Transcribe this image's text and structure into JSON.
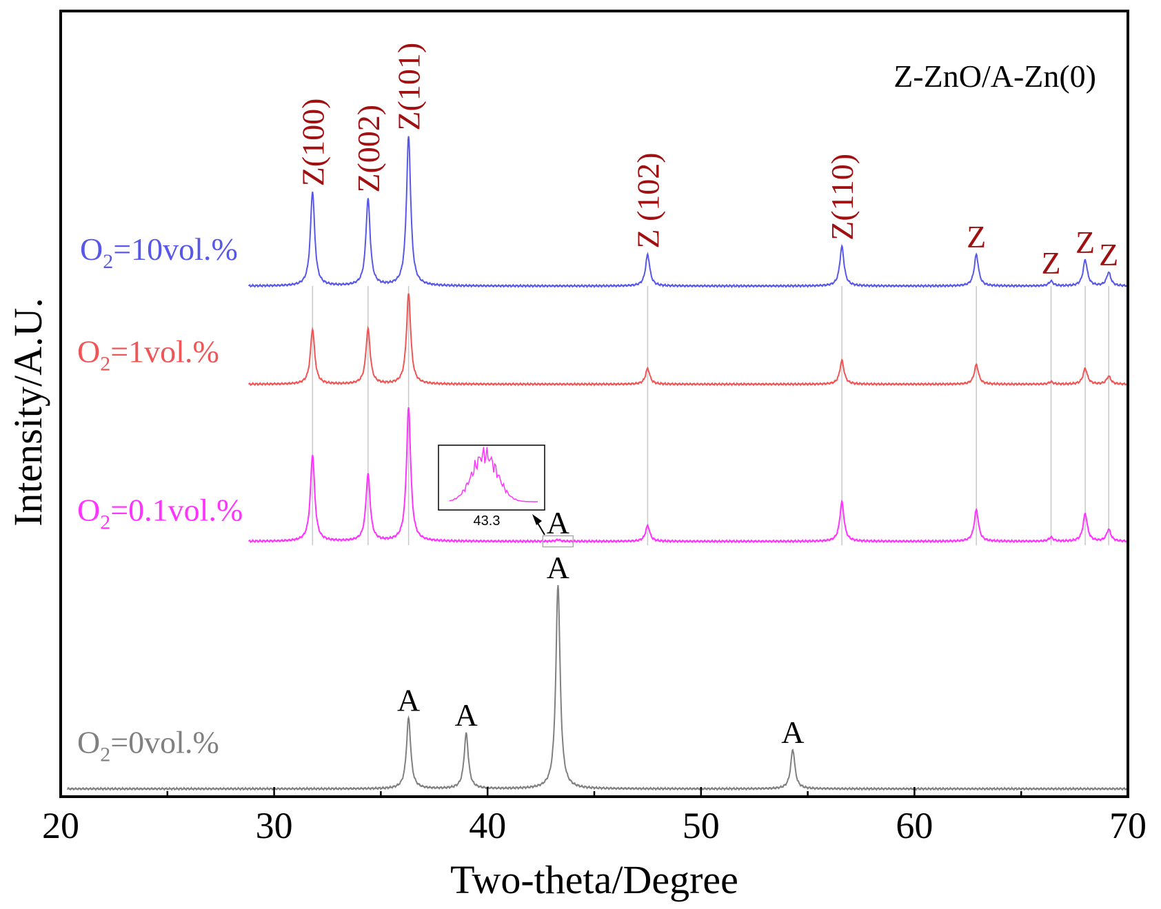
{
  "chart_data": {
    "type": "line",
    "title": "",
    "annotation": "Z-ZnO/A-Zn(0)",
    "xlabel": "Two-theta/Degree",
    "ylabel": "Intensity/A.U.",
    "xlim": [
      20,
      70
    ],
    "ylim": [
      0,
      100
    ],
    "x_ticks": [
      20,
      30,
      40,
      50,
      60,
      70
    ],
    "x_tick_labels": [
      "20",
      "30",
      "40",
      "50",
      "60",
      "70"
    ],
    "grid": false,
    "reference_lines": [
      31.8,
      34.4,
      36.3,
      47.5,
      56.6,
      62.9,
      66.4,
      68.0,
      69.1
    ],
    "series": [
      {
        "name": "O2=10vol.%",
        "label_main": "O",
        "label_sub": "2",
        "label_rest": "=10vol.%",
        "color": "#5858e8",
        "baseline": 65,
        "peaks": [
          [
            31.8,
            12
          ],
          [
            34.4,
            11
          ],
          [
            36.3,
            19
          ],
          [
            47.5,
            4
          ],
          [
            56.6,
            5
          ],
          [
            62.9,
            4
          ],
          [
            66.4,
            0.6
          ],
          [
            68.0,
            3.3
          ],
          [
            69.1,
            1.7
          ]
        ]
      },
      {
        "name": "O2=1vol.%",
        "label_main": "O",
        "label_sub": "2",
        "label_rest": "=1vol.%",
        "color": "#f05555",
        "baseline": 52.5,
        "peaks": [
          [
            31.8,
            7
          ],
          [
            34.4,
            7
          ],
          [
            36.3,
            11.5
          ],
          [
            47.5,
            2
          ],
          [
            56.6,
            3
          ],
          [
            62.9,
            2.5
          ],
          [
            66.4,
            0.3
          ],
          [
            68.0,
            2
          ],
          [
            69.1,
            1
          ]
        ]
      },
      {
        "name": "O2=0.1vol.%",
        "label_main": "O",
        "label_sub": "2",
        "label_rest": "=0.1vol.%",
        "color": "#ff33ff",
        "baseline": 32.5,
        "peaks": [
          [
            31.8,
            11
          ],
          [
            34.4,
            8.5
          ],
          [
            36.3,
            17
          ],
          [
            43.3,
            0.2
          ],
          [
            47.5,
            2
          ],
          [
            56.6,
            5
          ],
          [
            62.9,
            4
          ],
          [
            66.4,
            0.5
          ],
          [
            68.0,
            3.5
          ],
          [
            69.1,
            1.5
          ]
        ]
      },
      {
        "name": "O2=0vol.%",
        "label_main": "O",
        "label_sub": "2",
        "label_rest": "=0vol.%",
        "color": "#808080",
        "baseline": 1,
        "peaks": [
          [
            36.3,
            9
          ],
          [
            39.0,
            7
          ],
          [
            43.3,
            26
          ],
          [
            54.3,
            5
          ]
        ]
      }
    ],
    "peak_labels": [
      {
        "text": "Z(100)",
        "x": 31.8,
        "series": "O2=10vol.%",
        "color": "#a01010",
        "rotated": true
      },
      {
        "text": "Z(002)",
        "x": 34.4,
        "series": "O2=10vol.%",
        "color": "#a01010",
        "rotated": true
      },
      {
        "text": "Z(101)",
        "x": 36.3,
        "series": "O2=10vol.%",
        "color": "#a01010",
        "rotated": true
      },
      {
        "text": "Z (102)",
        "x": 47.5,
        "series": "O2=10vol.%",
        "color": "#a01010",
        "rotated": true
      },
      {
        "text": "Z(110)",
        "x": 56.6,
        "series": "O2=10vol.%",
        "color": "#a01010",
        "rotated": true
      },
      {
        "text": "Z",
        "x": 62.9,
        "series": "O2=10vol.%",
        "color": "#a01010",
        "rotated": false
      },
      {
        "text": "Z",
        "x": 66.4,
        "series": "O2=10vol.%",
        "color": "#a01010",
        "rotated": false
      },
      {
        "text": "Z",
        "x": 68.0,
        "series": "O2=10vol.%",
        "color": "#a01010",
        "rotated": false
      },
      {
        "text": "Z",
        "x": 69.1,
        "series": "O2=10vol.%",
        "color": "#a01010",
        "rotated": false
      },
      {
        "text": "A",
        "x": 43.3,
        "series": "O2=0.1vol.%",
        "color": "#000000",
        "rotated": false
      },
      {
        "text": "A",
        "x": 36.3,
        "series": "O2=0vol.%",
        "color": "#000000",
        "rotated": false
      },
      {
        "text": "A",
        "x": 39.0,
        "series": "O2=0vol.%",
        "color": "#000000",
        "rotated": false
      },
      {
        "text": "A",
        "x": 43.3,
        "series": "O2=0vol.%",
        "color": "#000000",
        "rotated": false
      },
      {
        "text": "A",
        "x": 54.3,
        "series": "O2=0vol.%",
        "color": "#000000",
        "rotated": false
      }
    ],
    "inset": {
      "description_series": "O2=0.1vol.%",
      "tick_label": "43.3",
      "x_center": 43.3
    }
  }
}
